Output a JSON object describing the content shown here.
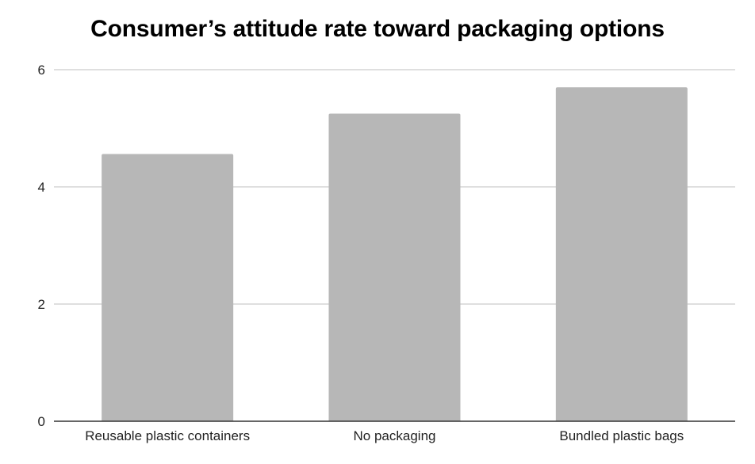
{
  "chart_data": {
    "type": "bar",
    "title": "Consumer’s attitude rate toward packaging options",
    "xlabel": "",
    "ylabel": "",
    "categories": [
      "Reusable plastic containers",
      "No packaging",
      "Bundled plastic bags"
    ],
    "values": [
      4.56,
      5.25,
      5.7
    ],
    "ylim": [
      0,
      6
    ],
    "yticks": [
      0,
      2,
      4,
      6
    ],
    "grid": true,
    "legend": "none",
    "bar_color": "#b7b7b7",
    "gridline_color": "#cccccc",
    "axis_color": "#333333"
  }
}
